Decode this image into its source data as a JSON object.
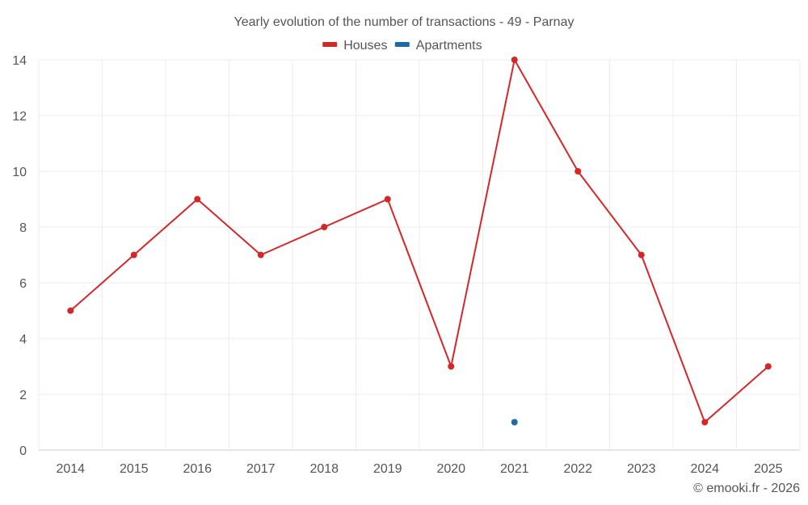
{
  "chart_data": {
    "type": "line",
    "title": "Yearly evolution of the number of transactions - 49 - Parnay",
    "categories": [
      "2014",
      "2015",
      "2016",
      "2017",
      "2018",
      "2019",
      "2020",
      "2021",
      "2022",
      "2023",
      "2024",
      "2025"
    ],
    "series": [
      {
        "name": "Houses",
        "color": "#d62728",
        "values": [
          5,
          7,
          9,
          7,
          8,
          9,
          3,
          14,
          10,
          7,
          1,
          3
        ]
      },
      {
        "name": "Apartments",
        "color": "#1f6aa5",
        "values": [
          null,
          null,
          null,
          null,
          null,
          null,
          null,
          1,
          null,
          null,
          null,
          null
        ]
      }
    ],
    "ylim": [
      0,
      14
    ],
    "yticks": [
      0,
      2,
      4,
      6,
      8,
      10,
      12,
      14
    ],
    "xlabel": "",
    "ylabel": "",
    "grid": true,
    "legend": "top-center"
  },
  "credit": "© emooki.fr - 2026"
}
